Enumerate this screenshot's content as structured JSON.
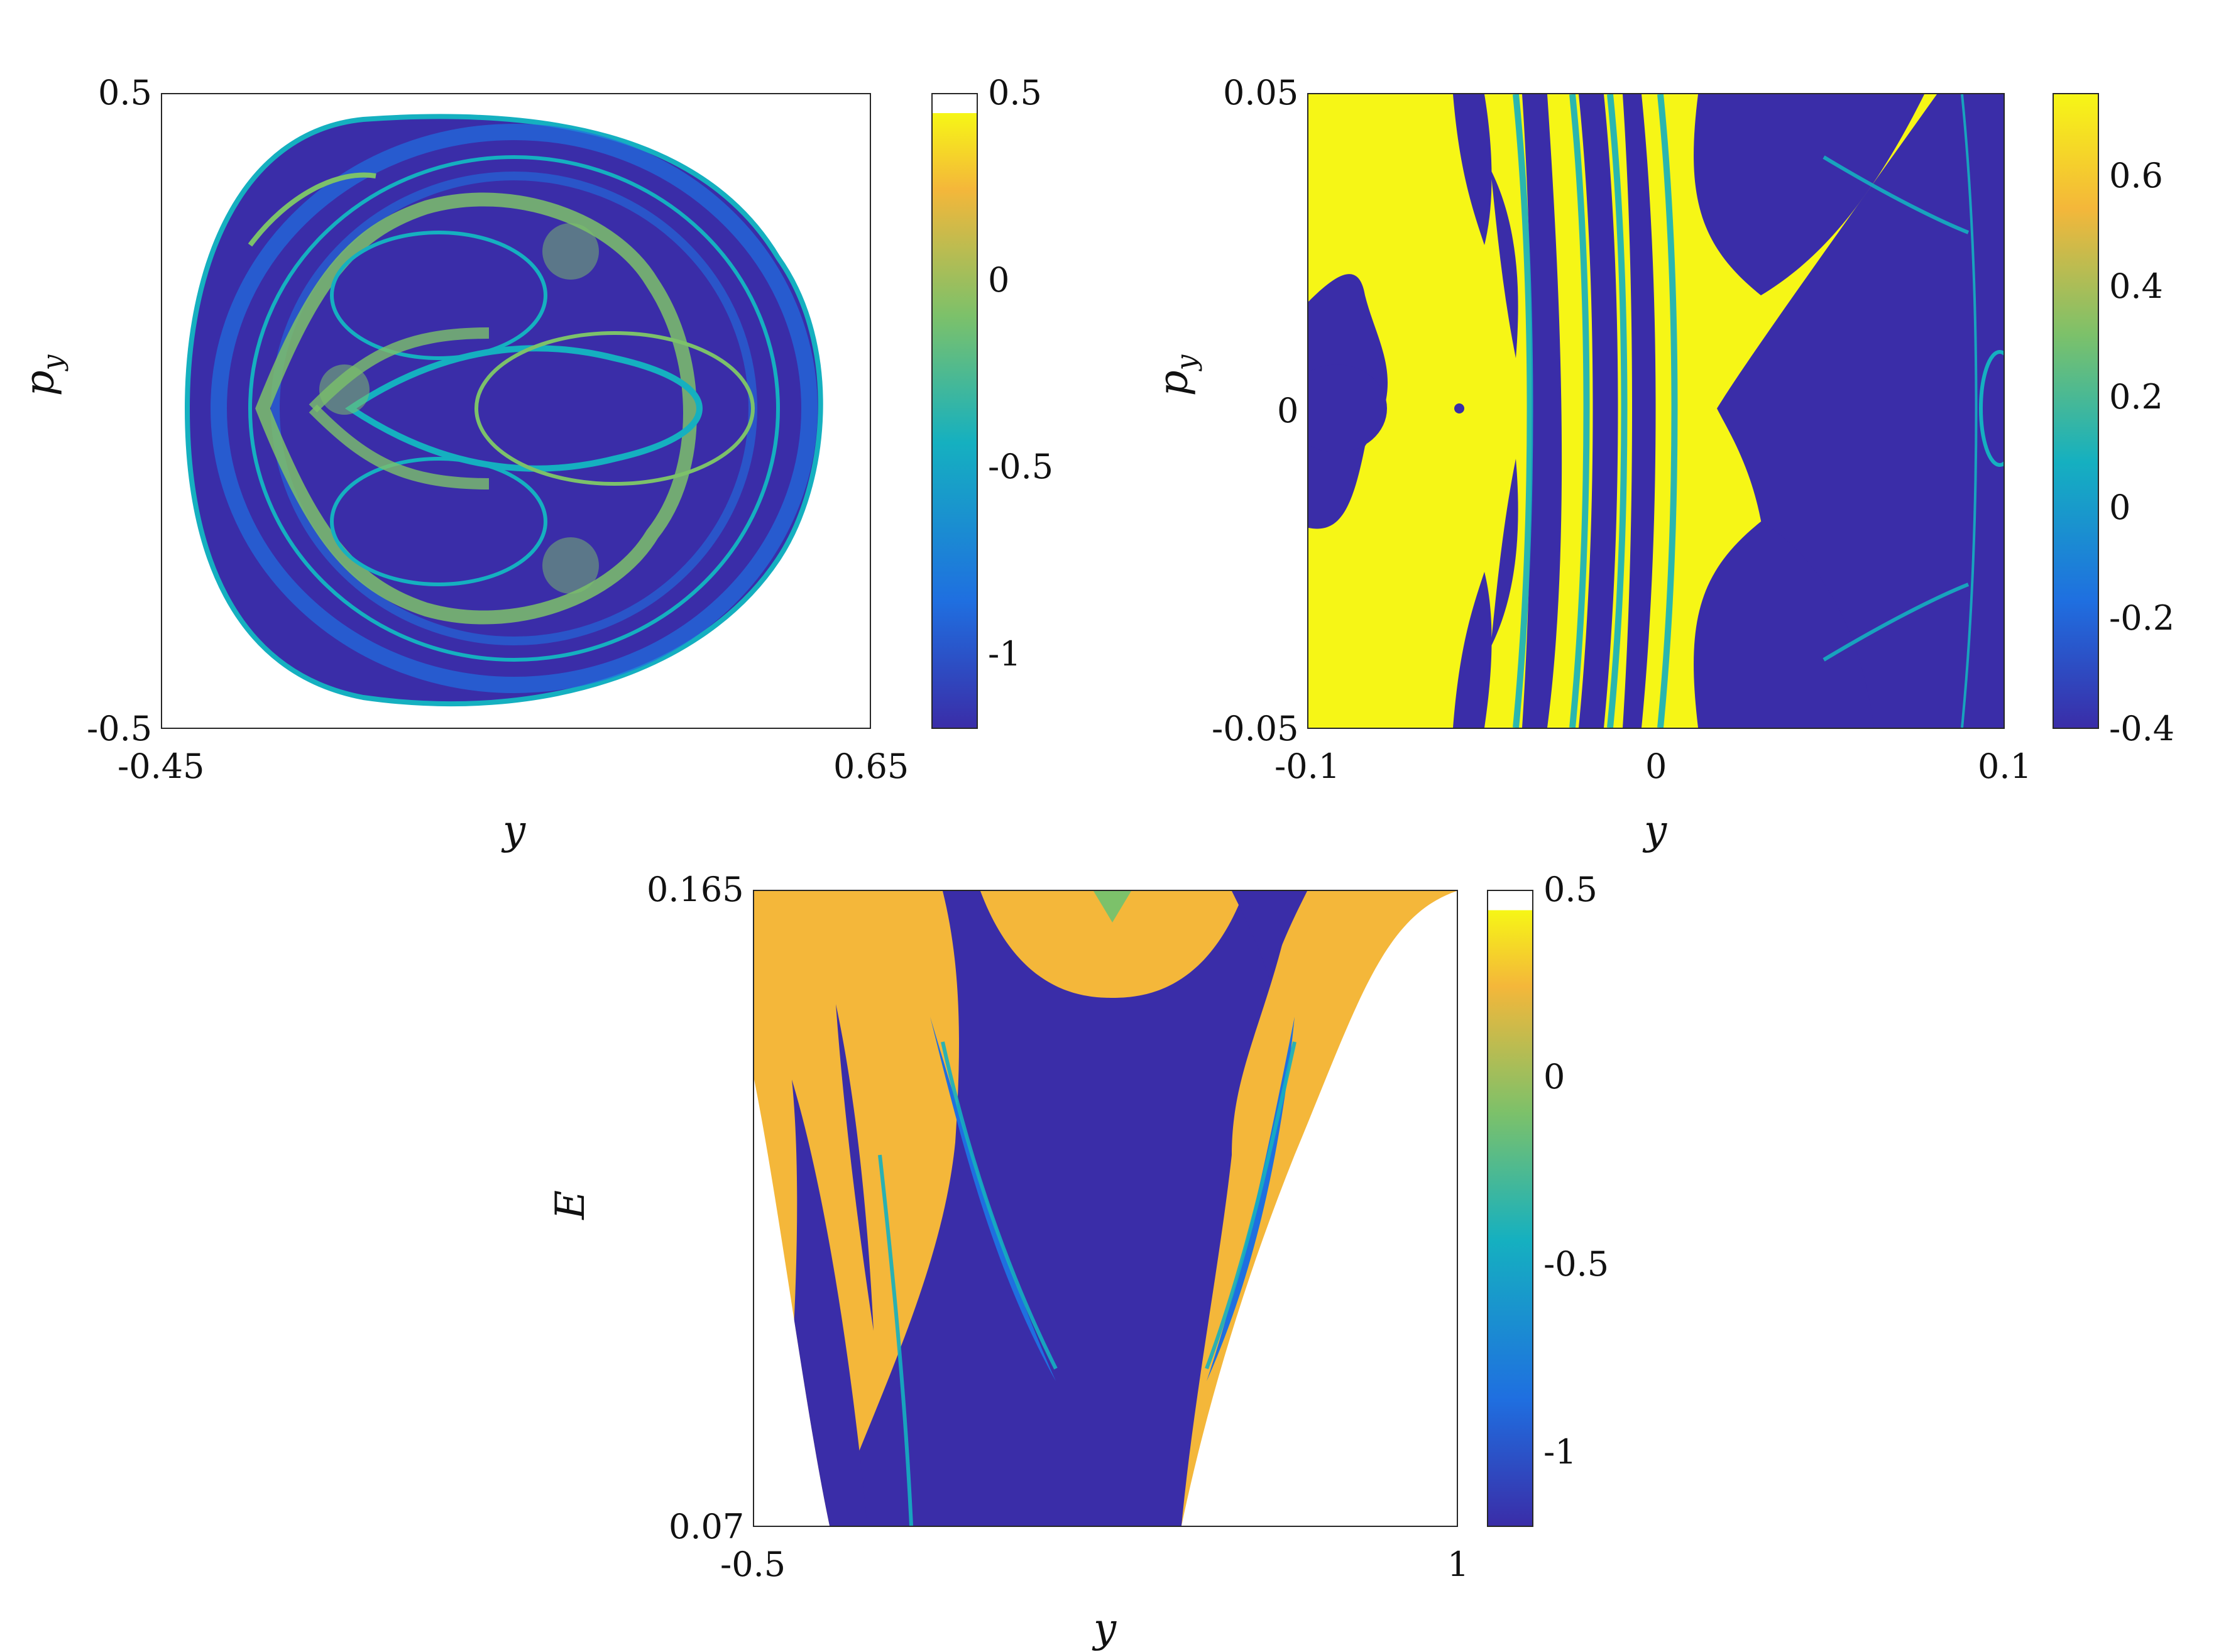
{
  "colors": {
    "dark": "#3A2DA8",
    "blue": "#1F6FE0",
    "teal": "#15B0C0",
    "green": "#7CC16A",
    "gold": "#F4B73A",
    "yellow": "#F6F616"
  },
  "chart_data": [
    {
      "type": "heatmap",
      "title": "",
      "xlabel": "y",
      "ylabel_main": "p",
      "ylabel_sub": "y",
      "xlim": [
        -0.45,
        0.65
      ],
      "ylim": [
        -0.5,
        0.5
      ],
      "x_ticks": [
        "-0.45",
        "0.65"
      ],
      "y_ticks": [
        "0.5",
        "-0.5"
      ],
      "colorbar_ticks": [
        "0.5",
        "0",
        "-0.5",
        "-1"
      ],
      "colorbar_range": [
        -1.2,
        0.5
      ]
    },
    {
      "type": "heatmap",
      "title": "",
      "xlabel": "y",
      "ylabel_main": "p",
      "ylabel_sub": "y",
      "xlim": [
        -0.1,
        0.1
      ],
      "ylim": [
        -0.05,
        0.05
      ],
      "x_ticks": [
        "-0.1",
        "0",
        "0.1"
      ],
      "y_ticks": [
        "0.05",
        "0",
        "-0.05"
      ],
      "colorbar_ticks": [
        "0.6",
        "0.4",
        "0.2",
        "0",
        "-0.2",
        "-0.4"
      ],
      "colorbar_range": [
        -0.4,
        0.75
      ]
    },
    {
      "type": "heatmap",
      "title": "",
      "xlabel": "y",
      "ylabel_main": "E",
      "ylabel_sub": "",
      "xlim": [
        -0.5,
        1
      ],
      "ylim": [
        0.07,
        0.165
      ],
      "x_ticks": [
        "-0.5",
        "1"
      ],
      "y_ticks": [
        "0.165",
        "0.07"
      ],
      "colorbar_ticks": [
        "0.5",
        "0",
        "-0.5",
        "-1"
      ],
      "colorbar_range": [
        -1.2,
        0.5
      ]
    }
  ]
}
